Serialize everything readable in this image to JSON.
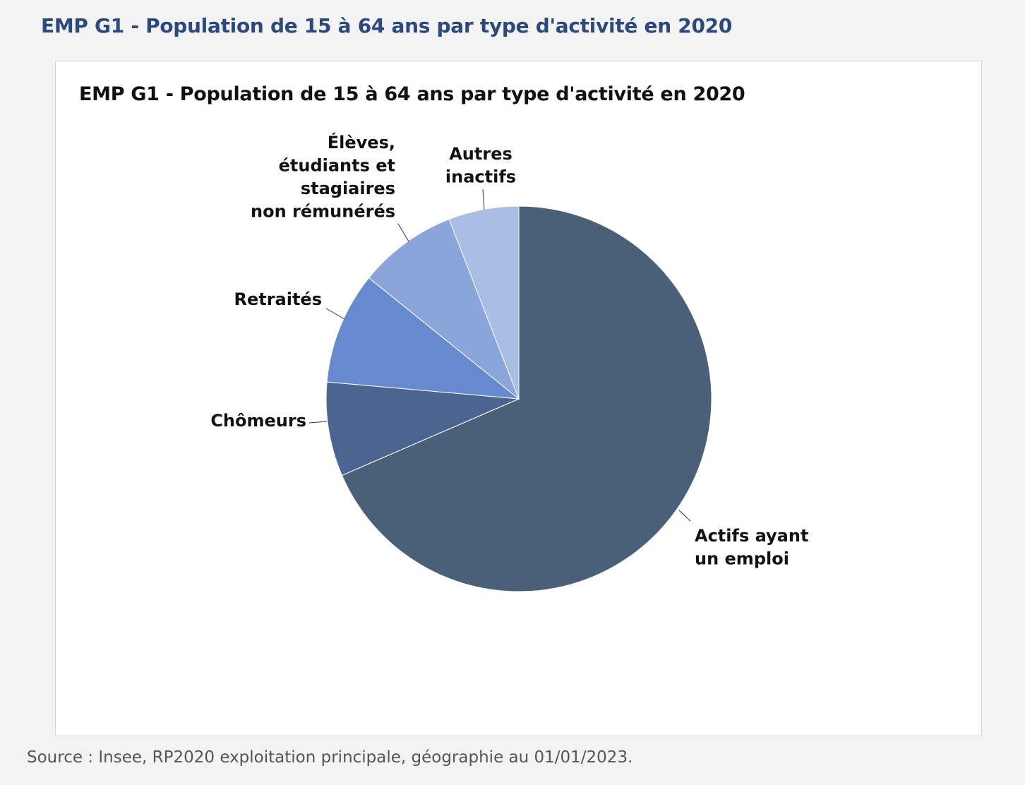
{
  "page": {
    "title": "EMP G1 - Population de 15 à 64 ans par type d'activité en 2020",
    "source": "Source : Insee, RP2020 exploitation principale, géographie au 01/01/2023."
  },
  "chart_data": {
    "type": "pie",
    "title": "EMP G1 - Population de 15 à 64 ans par type d'activité en 2020",
    "unit": "%",
    "legend": "none",
    "slices": [
      {
        "name": "Actifs ayant un emploi",
        "label_lines": [
          "Actifs ayant",
          "un emploi"
        ],
        "value": 68.5,
        "color": "#4a6078"
      },
      {
        "name": "Chômeurs",
        "label_lines": [
          "Chômeurs"
        ],
        "value": 7.9,
        "color": "#4c6590"
      },
      {
        "name": "Retraités",
        "label_lines": [
          "Retraités"
        ],
        "value": 9.4,
        "color": "#6789cd"
      },
      {
        "name": "Élèves, étudiants et stagiaires non rémunérés",
        "label_lines": [
          "Élèves,",
          "étudiants et",
          "stagiaires",
          "non rémunérés"
        ],
        "value": 8.3,
        "color": "#8aa5da"
      },
      {
        "name": "Autres inactifs",
        "label_lines": [
          "Autres",
          "inactifs"
        ],
        "value": 5.9,
        "color": "#aabde5"
      }
    ]
  }
}
